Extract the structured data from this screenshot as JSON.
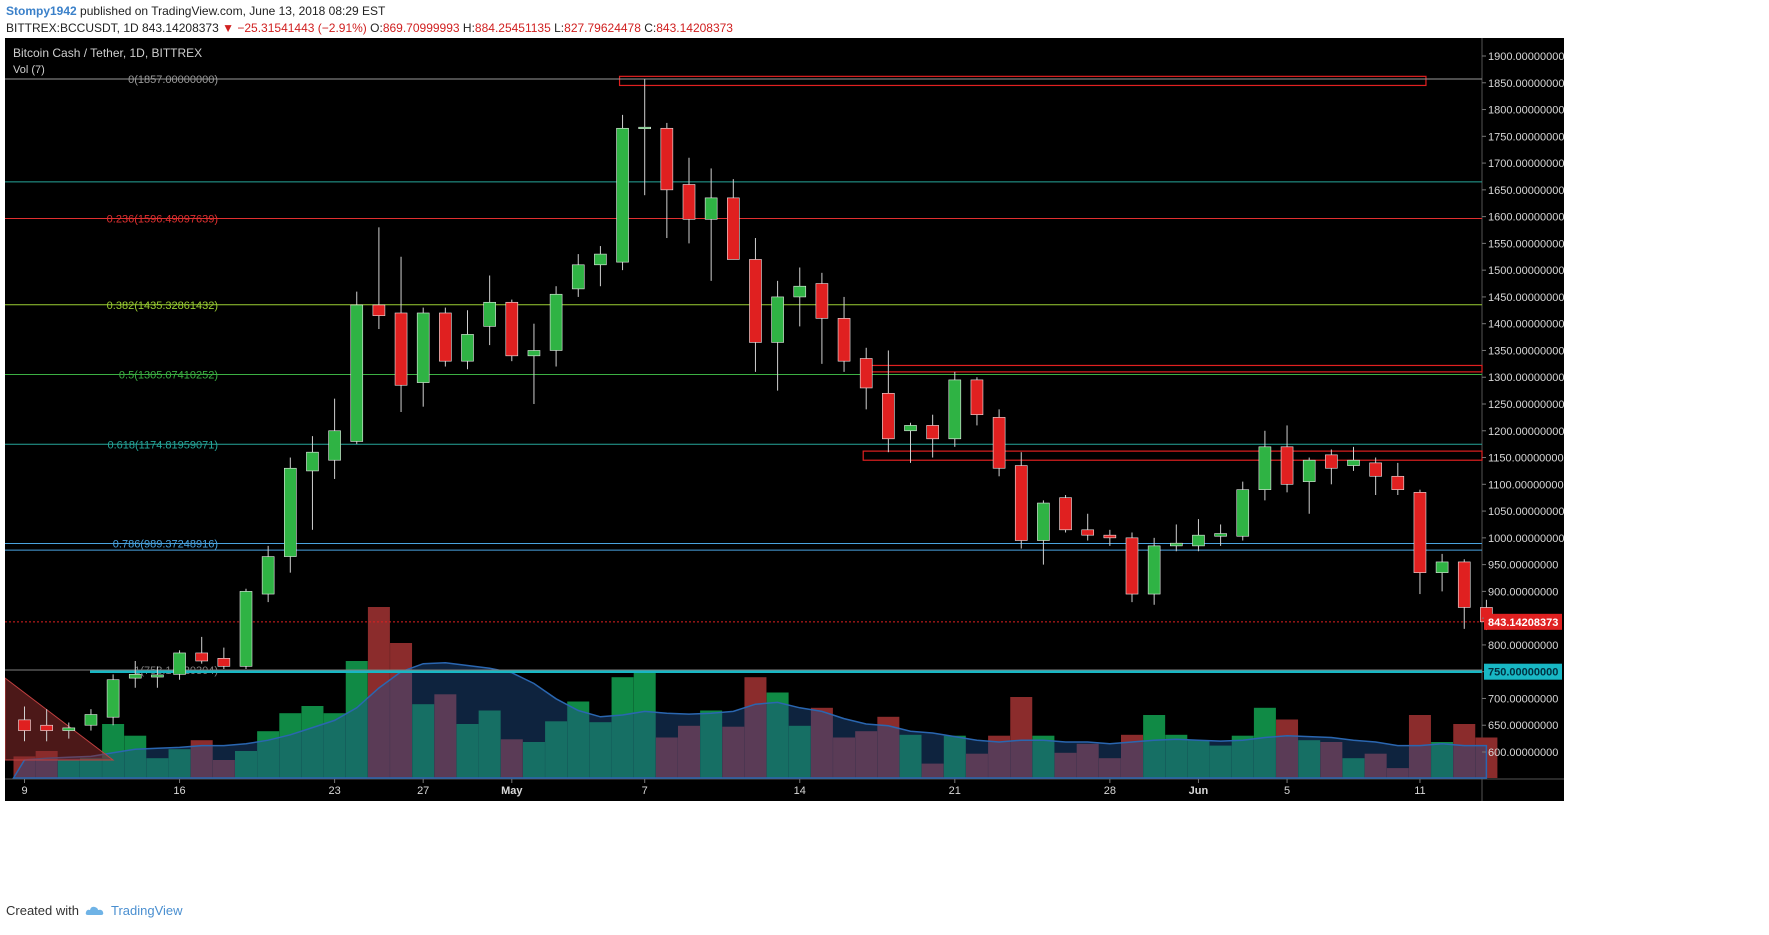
{
  "header": {
    "author": "Stompy1942",
    "published": "published on TradingView.com, June 13, 2018 08:29 EST"
  },
  "ohlc_line": {
    "symbol": "BITTREX:BCCUSDT, 1D",
    "last": "843.14208373",
    "change_arrow": "▼",
    "change": "−25.31541443 (−2.91%)",
    "o_label": "O:",
    "o": "869.70999993",
    "h_label": "H:",
    "h": "884.25451135",
    "l_label": "L:",
    "l": "827.79624478",
    "c_label": "C:",
    "c": "843.14208373"
  },
  "footer": {
    "created_with": "Created with",
    "brand": "TradingView"
  },
  "colors": {
    "background": "#000000",
    "up": "#2fb344",
    "down": "#e02020",
    "volume_up": "#108a45",
    "volume_down": "#8b2c2c",
    "volume_ma": "#1f4e8a",
    "last_price": "#e02020",
    "level_750": "#18b7c4"
  },
  "chart_data": {
    "type": "candlestick",
    "title": "Bitcoin Cash / Tether, 1D, BITTREX",
    "indicator_label": "Vol (7)",
    "ylim": [
      560,
      1920
    ],
    "y_ticks": [
      600,
      650,
      700,
      750,
      800,
      850,
      900,
      950,
      1000,
      1050,
      1100,
      1150,
      1200,
      1250,
      1300,
      1350,
      1400,
      1450,
      1500,
      1550,
      1600,
      1650,
      1700,
      1750,
      1800,
      1850,
      1900
    ],
    "y_tick_format": "0.00000000",
    "x_ticks": [
      {
        "label": "9",
        "index": 0
      },
      {
        "label": "16",
        "index": 7
      },
      {
        "label": "23",
        "index": 14
      },
      {
        "label": "27",
        "index": 18
      },
      {
        "label": "May",
        "index": 22
      },
      {
        "label": "7",
        "index": 28
      },
      {
        "label": "14",
        "index": 35
      },
      {
        "label": "21",
        "index": 42
      },
      {
        "label": "28",
        "index": 49
      },
      {
        "label": "Jun",
        "index": 53
      },
      {
        "label": "5",
        "index": 57
      },
      {
        "label": "11",
        "index": 63
      }
    ],
    "last_price": 843.14208373,
    "last_price_label": "843.14208373",
    "highlight_level": 750,
    "highlight_level_label": "750.00000000",
    "fib_levels": [
      {
        "label": "0(1857.00000000)",
        "value": 1857,
        "color": "#9a9a9a"
      },
      {
        "label": "0.236(1596.49097639)",
        "value": 1596.49,
        "color": "#e03030"
      },
      {
        "label": "0.382(1435.32861432)",
        "value": 1435.33,
        "color": "#9acd32"
      },
      {
        "label": "0.5(1305.07410252)",
        "value": 1305.07,
        "color": "#3cb043"
      },
      {
        "label": "0.618(1174.81959071)",
        "value": 1174.82,
        "color": "#26a69a"
      },
      {
        "label": "0.786(989.37248916)",
        "value": 989.37,
        "color": "#4aa3df"
      },
      {
        "label": "1(753.14820304)",
        "value": 753.15,
        "color": "#808080"
      }
    ],
    "hlines": [
      {
        "value": 1665,
        "color": "#26a69a"
      },
      {
        "value": 977,
        "color": "#4aa3df"
      }
    ],
    "zones": [
      {
        "from_index": 27,
        "to_index": 63,
        "low": 1845,
        "high": 1862,
        "color": "#e02020"
      },
      {
        "from_index": 38,
        "to_index": 70,
        "low": 1310,
        "high": 1322,
        "color": "#e02020"
      },
      {
        "from_index": 38,
        "to_index": 70,
        "low": 1145,
        "high": 1162,
        "color": "#e02020"
      }
    ],
    "candles": [
      {
        "o": 660,
        "h": 685,
        "l": 620,
        "c": 640
      },
      {
        "o": 650,
        "h": 680,
        "l": 620,
        "c": 640
      },
      {
        "o": 640,
        "h": 655,
        "l": 625,
        "c": 645
      },
      {
        "o": 650,
        "h": 680,
        "l": 640,
        "c": 670
      },
      {
        "o": 665,
        "h": 745,
        "l": 650,
        "c": 735
      },
      {
        "o": 738,
        "h": 770,
        "l": 720,
        "c": 745
      },
      {
        "o": 740,
        "h": 760,
        "l": 720,
        "c": 744
      },
      {
        "o": 745,
        "h": 790,
        "l": 735,
        "c": 785
      },
      {
        "o": 785,
        "h": 815,
        "l": 765,
        "c": 770
      },
      {
        "o": 775,
        "h": 795,
        "l": 755,
        "c": 760
      },
      {
        "o": 760,
        "h": 905,
        "l": 755,
        "c": 900
      },
      {
        "o": 895,
        "h": 985,
        "l": 880,
        "c": 965
      },
      {
        "o": 965,
        "h": 1150,
        "l": 935,
        "c": 1130
      },
      {
        "o": 1125,
        "h": 1190,
        "l": 1015,
        "c": 1160
      },
      {
        "o": 1145,
        "h": 1260,
        "l": 1110,
        "c": 1200
      },
      {
        "o": 1180,
        "h": 1460,
        "l": 1175,
        "c": 1435
      },
      {
        "o": 1435,
        "h": 1580,
        "l": 1390,
        "c": 1415
      },
      {
        "o": 1420,
        "h": 1525,
        "l": 1235,
        "c": 1285
      },
      {
        "o": 1290,
        "h": 1430,
        "l": 1245,
        "c": 1420
      },
      {
        "o": 1420,
        "h": 1430,
        "l": 1320,
        "c": 1330
      },
      {
        "o": 1330,
        "h": 1425,
        "l": 1315,
        "c": 1380
      },
      {
        "o": 1395,
        "h": 1490,
        "l": 1360,
        "c": 1440
      },
      {
        "o": 1440,
        "h": 1445,
        "l": 1330,
        "c": 1340
      },
      {
        "o": 1340,
        "h": 1400,
        "l": 1250,
        "c": 1350
      },
      {
        "o": 1350,
        "h": 1470,
        "l": 1320,
        "c": 1455
      },
      {
        "o": 1465,
        "h": 1530,
        "l": 1450,
        "c": 1510
      },
      {
        "o": 1510,
        "h": 1545,
        "l": 1470,
        "c": 1530
      },
      {
        "o": 1515,
        "h": 1790,
        "l": 1500,
        "c": 1765
      },
      {
        "o": 1765,
        "h": 1857,
        "l": 1640,
        "c": 1767
      },
      {
        "o": 1765,
        "h": 1775,
        "l": 1560,
        "c": 1650
      },
      {
        "o": 1660,
        "h": 1710,
        "l": 1550,
        "c": 1595
      },
      {
        "o": 1595,
        "h": 1690,
        "l": 1480,
        "c": 1635
      },
      {
        "o": 1635,
        "h": 1670,
        "l": 1520,
        "c": 1520
      },
      {
        "o": 1520,
        "h": 1560,
        "l": 1310,
        "c": 1365
      },
      {
        "o": 1365,
        "h": 1480,
        "l": 1275,
        "c": 1450
      },
      {
        "o": 1450,
        "h": 1505,
        "l": 1395,
        "c": 1470
      },
      {
        "o": 1475,
        "h": 1495,
        "l": 1325,
        "c": 1410
      },
      {
        "o": 1410,
        "h": 1450,
        "l": 1310,
        "c": 1330
      },
      {
        "o": 1335,
        "h": 1355,
        "l": 1240,
        "c": 1280
      },
      {
        "o": 1270,
        "h": 1350,
        "l": 1160,
        "c": 1185
      },
      {
        "o": 1200,
        "h": 1215,
        "l": 1140,
        "c": 1210
      },
      {
        "o": 1210,
        "h": 1230,
        "l": 1150,
        "c": 1185
      },
      {
        "o": 1185,
        "h": 1310,
        "l": 1170,
        "c": 1295
      },
      {
        "o": 1295,
        "h": 1300,
        "l": 1210,
        "c": 1230
      },
      {
        "o": 1225,
        "h": 1240,
        "l": 1115,
        "c": 1130
      },
      {
        "o": 1135,
        "h": 1160,
        "l": 980,
        "c": 995
      },
      {
        "o": 995,
        "h": 1070,
        "l": 950,
        "c": 1065
      },
      {
        "o": 1075,
        "h": 1080,
        "l": 1010,
        "c": 1015
      },
      {
        "o": 1015,
        "h": 1045,
        "l": 995,
        "c": 1005
      },
      {
        "o": 1005,
        "h": 1015,
        "l": 985,
        "c": 1000
      },
      {
        "o": 1000,
        "h": 1010,
        "l": 880,
        "c": 895
      },
      {
        "o": 895,
        "h": 1000,
        "l": 875,
        "c": 985
      },
      {
        "o": 985,
        "h": 1025,
        "l": 975,
        "c": 990
      },
      {
        "o": 985,
        "h": 1035,
        "l": 975,
        "c": 1005
      },
      {
        "o": 1003,
        "h": 1025,
        "l": 985,
        "c": 1008
      },
      {
        "o": 1003,
        "h": 1105,
        "l": 995,
        "c": 1090
      },
      {
        "o": 1090,
        "h": 1200,
        "l": 1070,
        "c": 1170
      },
      {
        "o": 1170,
        "h": 1210,
        "l": 1085,
        "c": 1100
      },
      {
        "o": 1105,
        "h": 1150,
        "l": 1045,
        "c": 1145
      },
      {
        "o": 1155,
        "h": 1165,
        "l": 1100,
        "c": 1130
      },
      {
        "o": 1135,
        "h": 1170,
        "l": 1125,
        "c": 1145
      },
      {
        "o": 1140,
        "h": 1150,
        "l": 1080,
        "c": 1115
      },
      {
        "o": 1115,
        "h": 1140,
        "l": 1080,
        "c": 1090
      },
      {
        "o": 1085,
        "h": 1090,
        "l": 895,
        "c": 935
      },
      {
        "o": 935,
        "h": 970,
        "l": 900,
        "c": 955
      },
      {
        "o": 955,
        "h": 960,
        "l": 830,
        "c": 870
      },
      {
        "o": 870,
        "h": 884.25,
        "l": 827.8,
        "c": 843.14
      }
    ],
    "volume_relative": [
      0.24,
      0.3,
      0.2,
      0.22,
      0.6,
      0.47,
      0.22,
      0.32,
      0.42,
      0.2,
      0.3,
      0.52,
      0.72,
      0.8,
      0.72,
      1.3,
      1.9,
      1.5,
      0.82,
      0.93,
      0.6,
      0.75,
      0.43,
      0.4,
      0.63,
      0.85,
      0.62,
      1.12,
      1.2,
      0.45,
      0.58,
      0.75,
      0.57,
      1.12,
      0.95,
      0.58,
      0.78,
      0.45,
      0.52,
      0.68,
      0.48,
      0.16,
      0.47,
      0.27,
      0.47,
      0.9,
      0.47,
      0.28,
      0.38,
      0.22,
      0.48,
      0.7,
      0.48,
      0.42,
      0.36,
      0.47,
      0.78,
      0.65,
      0.42,
      0.4,
      0.22,
      0.27,
      0.11,
      0.7,
      0.4,
      0.6,
      0.45
    ],
    "volume_ma_relative": [
      0.2,
      0.22,
      0.23,
      0.24,
      0.28,
      0.32,
      0.33,
      0.34,
      0.36,
      0.36,
      0.38,
      0.42,
      0.48,
      0.56,
      0.64,
      0.78,
      1.0,
      1.18,
      1.27,
      1.28,
      1.25,
      1.22,
      1.17,
      1.05,
      0.88,
      0.75,
      0.68,
      0.7,
      0.74,
      0.72,
      0.71,
      0.72,
      0.74,
      0.82,
      0.84,
      0.78,
      0.74,
      0.66,
      0.6,
      0.58,
      0.52,
      0.5,
      0.46,
      0.42,
      0.4,
      0.42,
      0.42,
      0.4,
      0.4,
      0.38,
      0.4,
      0.42,
      0.43,
      0.42,
      0.41,
      0.42,
      0.45,
      0.47,
      0.46,
      0.45,
      0.42,
      0.4,
      0.36,
      0.36,
      0.38,
      0.36,
      0.36
    ]
  }
}
